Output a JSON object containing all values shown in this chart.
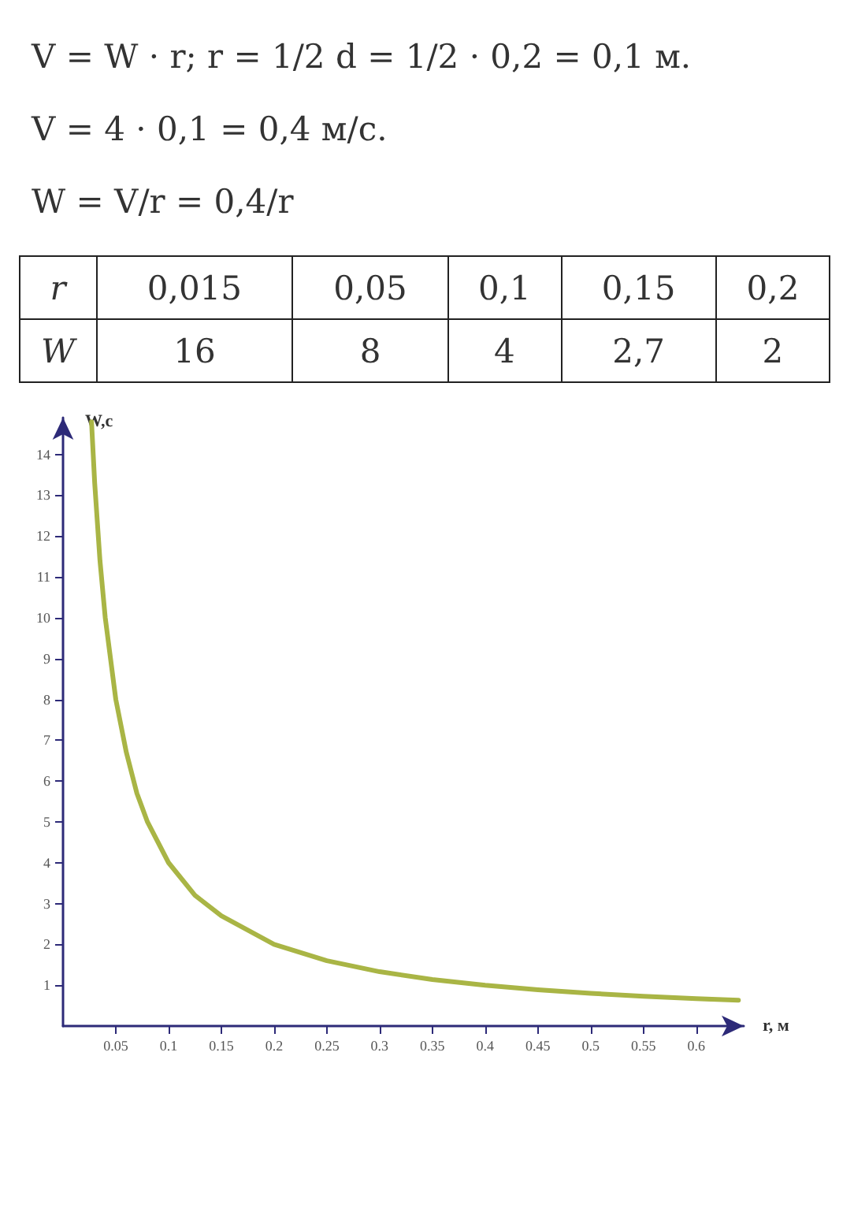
{
  "chart_data": {
    "type": "line",
    "xlabel": "r, м",
    "ylabel": "W,c",
    "annotations": [
      "V = W · r;  r = 1/2 d = 1/2 · 0,2 = 0,1 м.",
      "V = 4 · 0,1 = 0,4 м/с.",
      "W = V/r = 0,4/r",
      "r",
      "0,015",
      "0,05",
      "0,1",
      "0,15",
      "0,2",
      "W",
      "16",
      "8",
      "4",
      "2,7",
      "2"
    ],
    "series": [
      {
        "color": "#a9b545",
        "x": [
          0.027,
          0.03,
          0.035,
          0.04,
          0.05,
          0.06,
          0.07,
          0.08,
          0.1,
          0.125,
          0.15,
          0.2,
          0.25,
          0.3,
          0.35,
          0.4,
          0.45,
          0.5,
          0.55,
          0.6,
          0.64
        ],
        "values": [
          14.8,
          13.3,
          11.4,
          10,
          8,
          6.7,
          5.7,
          5,
          4,
          3.2,
          2.7,
          2,
          1.6,
          1.33,
          1.14,
          1,
          0.89,
          0.8,
          0.73,
          0.67,
          0.63
        ]
      }
    ],
    "xlim": [
      0,
      0.645
    ],
    "xticks": [
      0.05,
      0.1,
      0.15,
      0.2,
      0.25,
      0.3,
      0.35,
      0.4,
      0.45,
      0.5,
      0.55,
      0.6
    ],
    "ylim": [
      0,
      14.9
    ],
    "yticks": [
      1,
      2,
      3,
      4,
      5,
      6,
      7,
      8,
      9,
      10,
      11,
      12,
      13,
      14
    ],
    "grid": false,
    "marker": "none",
    "line_style": "solid"
  }
}
